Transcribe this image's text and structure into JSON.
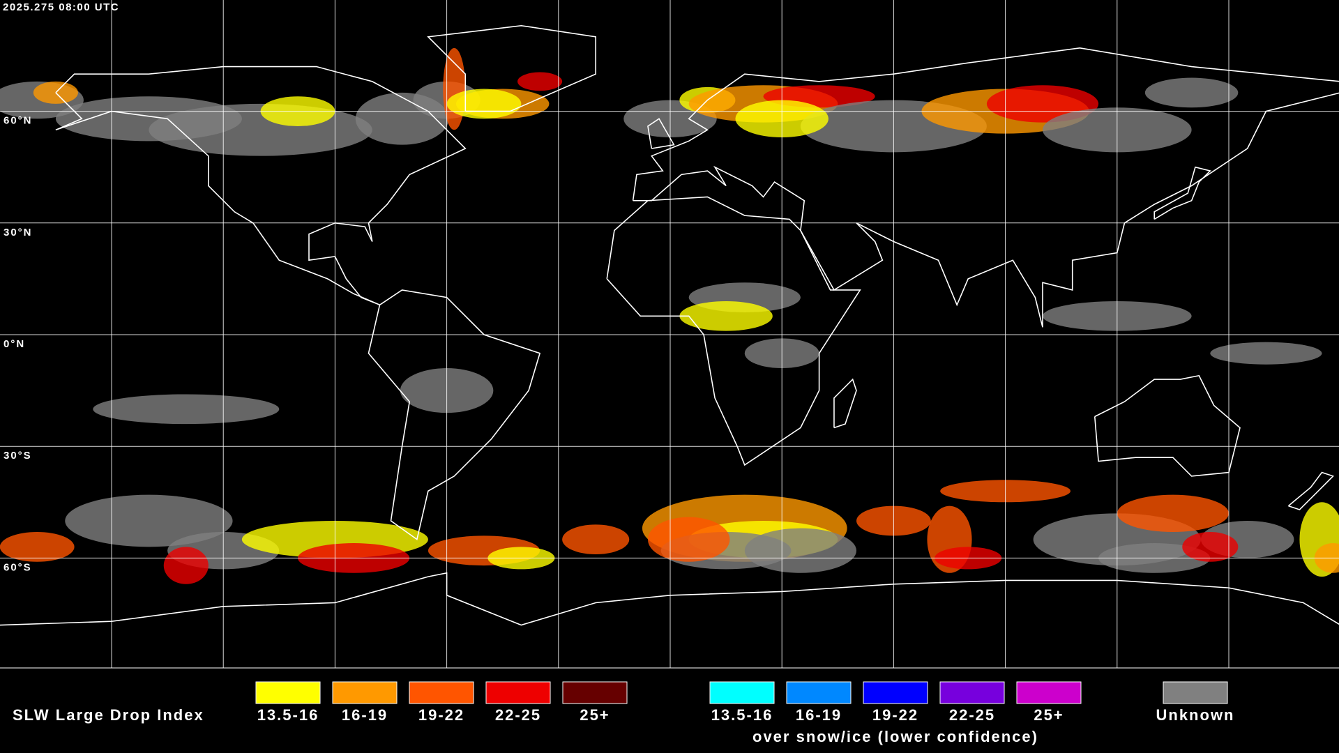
{
  "timestamp": "2025.275 08:00 UTC",
  "latitude_labels": [
    "60°N",
    "30°N",
    "0°N",
    "30°S",
    "60°S"
  ],
  "legend": {
    "title": "SLW Large Drop Index",
    "groups": [
      {
        "items": [
          {
            "label": "13.5-16",
            "color": "#ffff00"
          },
          {
            "label": "16-19",
            "color": "#ff9900"
          },
          {
            "label": "19-22",
            "color": "#ff5500"
          },
          {
            "label": "22-25",
            "color": "#ee0000"
          },
          {
            "label": "25+",
            "color": "#660000"
          }
        ]
      },
      {
        "items": [
          {
            "label": "13.5-16",
            "color": "#00ffff"
          },
          {
            "label": "16-19",
            "color": "#0088ff"
          },
          {
            "label": "19-22",
            "color": "#0000ff"
          },
          {
            "label": "22-25",
            "color": "#7700dd"
          },
          {
            "label": "25+",
            "color": "#cc00cc"
          }
        ],
        "caption": "over snow/ice (lower confidence)"
      },
      {
        "items": [
          {
            "label": "Unknown",
            "color": "#808080"
          }
        ]
      }
    ]
  }
}
